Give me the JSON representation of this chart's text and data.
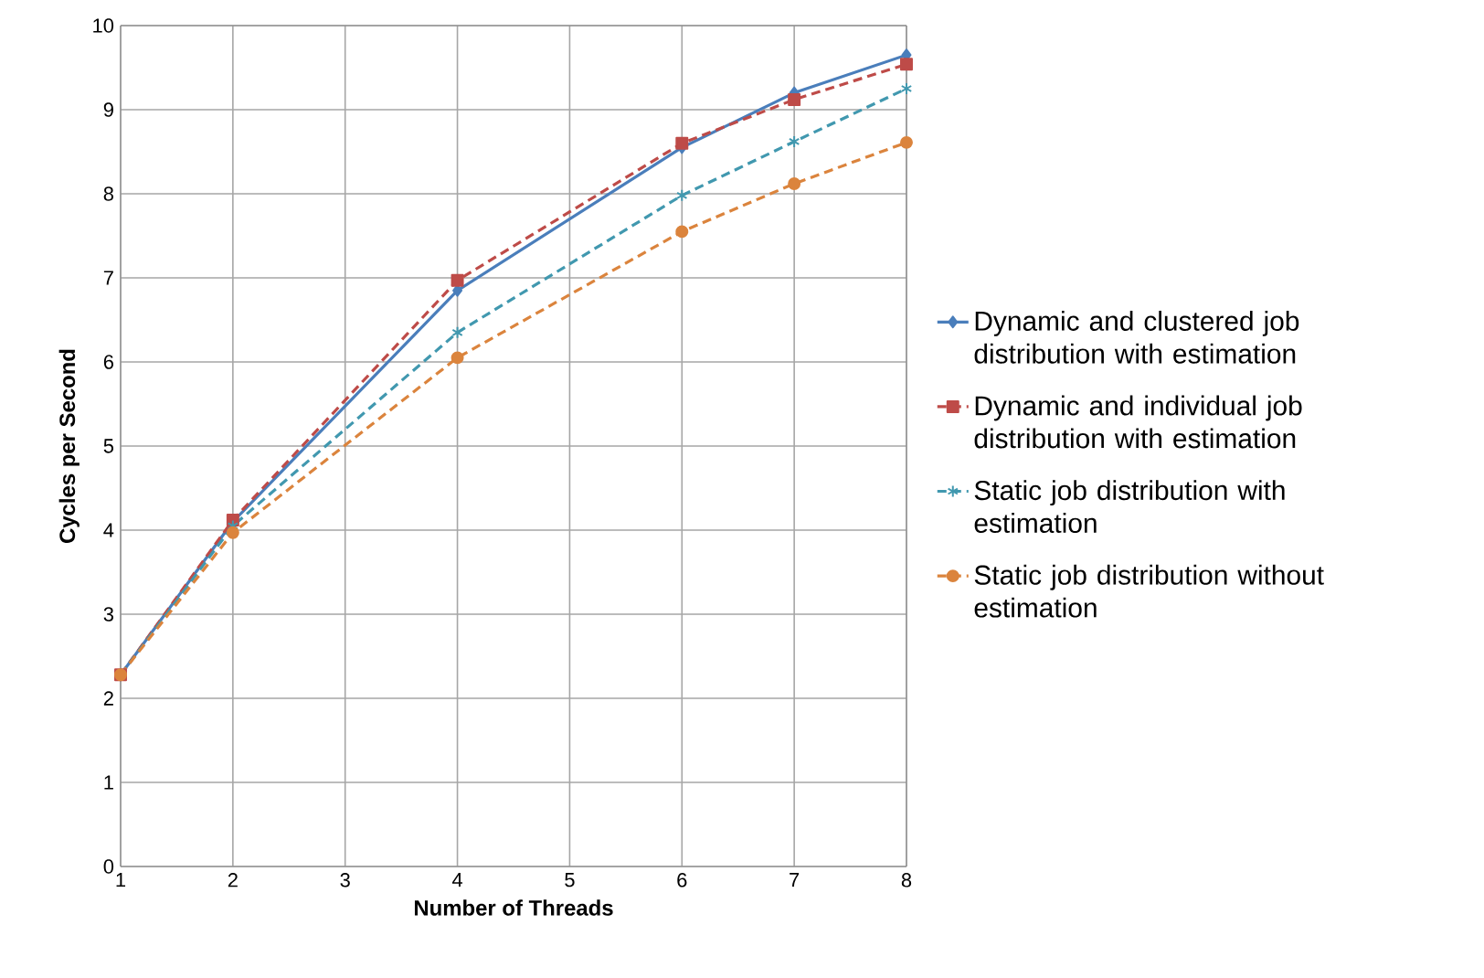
{
  "chart_data": {
    "type": "line",
    "xlabel": "Number of Threads",
    "ylabel": "Cycles per Second",
    "xlim": [
      1,
      8
    ],
    "xticks": [
      1,
      2,
      3,
      4,
      5,
      6,
      7,
      8
    ],
    "ylim": [
      0,
      10
    ],
    "yticks": [
      0,
      1,
      2,
      3,
      4,
      5,
      6,
      7,
      8,
      9,
      10
    ],
    "grid": true,
    "legend": "right",
    "x": [
      1,
      2,
      4,
      6,
      7,
      8
    ],
    "series": [
      {
        "name": "Dynamic and clustered job distribution with estimation",
        "color": "#4a7ebb",
        "marker": "diamond",
        "line_style": "solid",
        "values": [
          2.28,
          4.1,
          6.85,
          8.55,
          9.2,
          9.65
        ]
      },
      {
        "name": "Dynamic and individual job distribution with estimation",
        "color": "#be4b48",
        "marker": "square",
        "line_style": "dashed",
        "values": [
          2.28,
          4.12,
          6.97,
          8.6,
          9.12,
          9.54
        ]
      },
      {
        "name": "Static job distribution with estimation",
        "color": "#4198af",
        "marker": "cross",
        "line_style": "dashed",
        "values": [
          2.28,
          4.05,
          6.35,
          7.98,
          8.62,
          9.25
        ]
      },
      {
        "name": "Static job distribution without estimation",
        "color": "#db843d",
        "marker": "circle",
        "line_style": "dashed",
        "values": [
          2.28,
          3.97,
          6.05,
          7.55,
          8.12,
          8.61
        ]
      }
    ]
  }
}
